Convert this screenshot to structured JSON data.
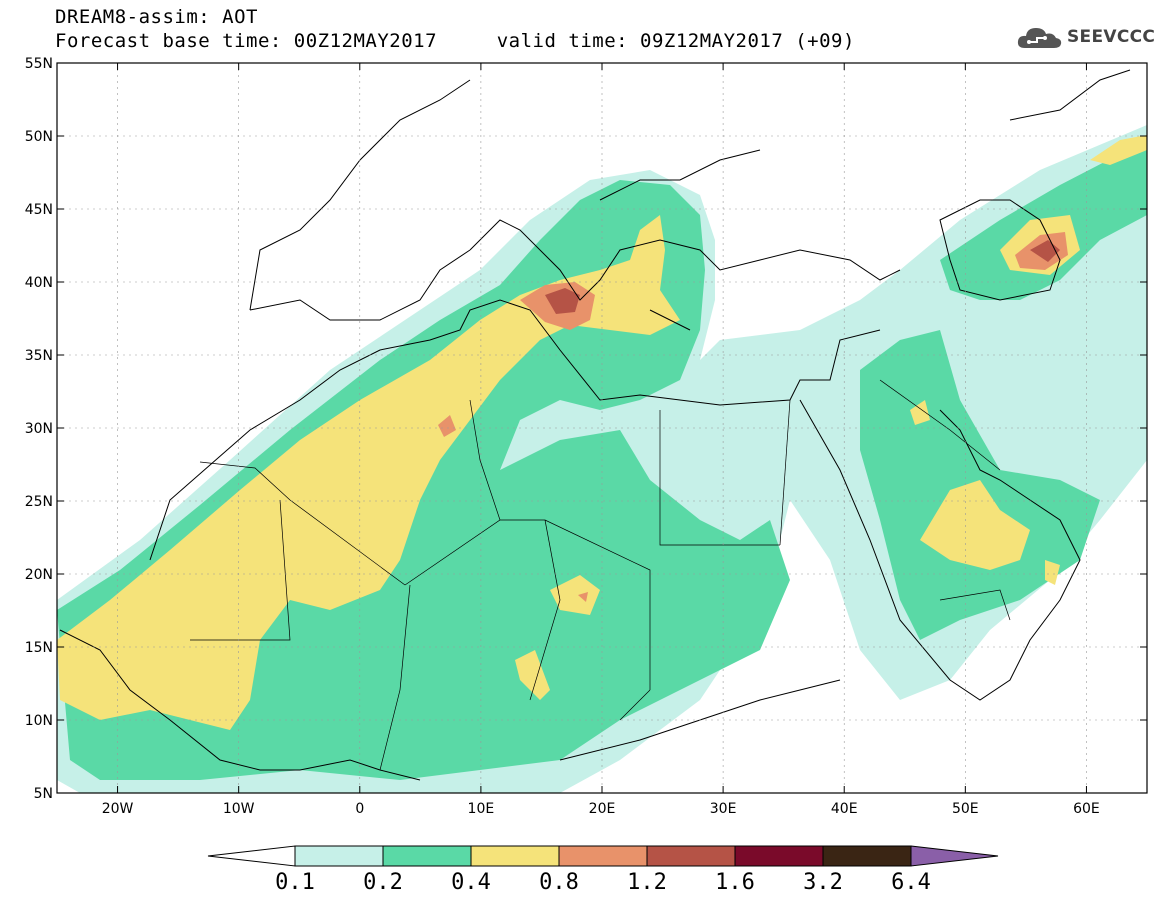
{
  "header": {
    "title_line1": "DREAM8-assim: AOT",
    "title_line2": "Forecast base time: 00Z12MAY2017     valid time: 09Z12MAY2017 (+09)"
  },
  "logo": {
    "text": "SEEVCCC",
    "icon": "cloud-icon"
  },
  "map": {
    "lat_labels": [
      "55N",
      "50N",
      "45N",
      "40N",
      "35N",
      "30N",
      "25N",
      "20N",
      "15N",
      "10N",
      "5N"
    ],
    "lon_labels": [
      "20W",
      "10W",
      "0",
      "10E",
      "20E",
      "30E",
      "40E",
      "50E",
      "60E"
    ],
    "lat_values": [
      55,
      50,
      45,
      40,
      35,
      30,
      25,
      20,
      15,
      10,
      5
    ],
    "lon_values": [
      -20,
      -10,
      0,
      10,
      20,
      30,
      40,
      50,
      60
    ],
    "lon_range": [
      -25,
      65
    ],
    "lat_range": [
      5,
      55
    ]
  },
  "colorbar": {
    "labels": [
      "0.1",
      "0.2",
      "0.4",
      "0.8",
      "1.2",
      "1.6",
      "3.2",
      "6.4"
    ],
    "colors": [
      "#ffffff",
      "#c6f0e8",
      "#5ad9a6",
      "#f5e37a",
      "#e8926a",
      "#b55346",
      "#7a0a2a",
      "#3a2514",
      "#8a5fa8"
    ]
  },
  "colors": {
    "c01": "#c6f0e8",
    "c02": "#5ad9a6",
    "c04": "#f5e37a",
    "c08": "#e8926a",
    "c12": "#b55346"
  }
}
